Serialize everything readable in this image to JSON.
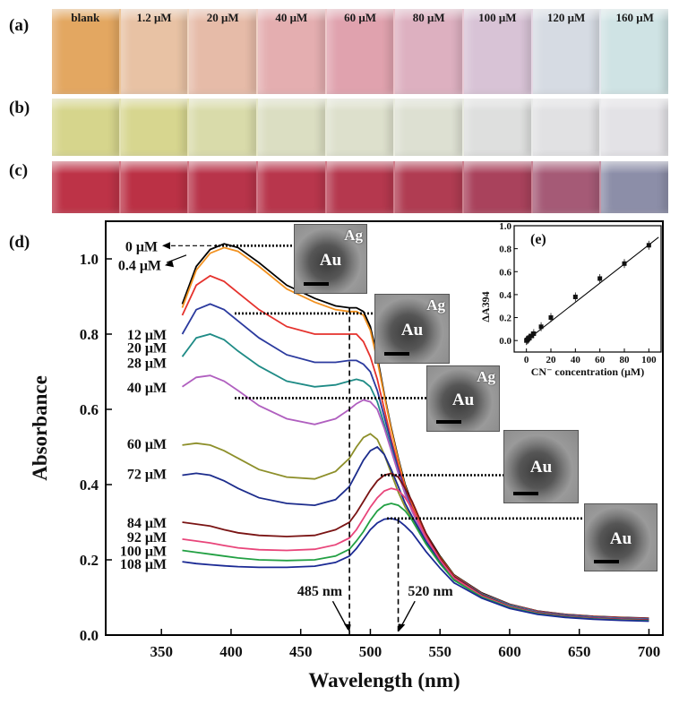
{
  "panels": {
    "a": "(a)",
    "b": "(b)",
    "c": "(c)",
    "d": "(d)",
    "e": "(e)"
  },
  "vials": {
    "labels": [
      "blank",
      "1.2 μM",
      "20 μM",
      "40 μM",
      "60 μM",
      "80 μM",
      "100 μM",
      "120 μM",
      "160 μM"
    ],
    "row_a": [
      "#e3a761",
      "#e8c2a4",
      "#e6bba8",
      "#e4aeb0",
      "#e0a2ae",
      "#ddb0c0",
      "#d8c3d6",
      "#d6dbe3",
      "#cfe3e4"
    ],
    "row_b": [
      "#d6d58c",
      "#d7d68f",
      "#d9dbaa",
      "#dbdec2",
      "#dde0cc",
      "#dde0d2",
      "#dedfde",
      "#e1e1e3",
      "#e3e2e6"
    ],
    "row_c": [
      "#bd3347",
      "#bb3145",
      "#b8344a",
      "#b8364c",
      "#b5384e",
      "#b03c52",
      "#a9425c",
      "#a55a76",
      "#8c8ea8"
    ]
  },
  "chart_data": [
    {
      "type": "line",
      "xlabel": "Wavelength (nm)",
      "ylabel": "Absorbance",
      "xlim": [
        310,
        710
      ],
      "ylim": [
        0.0,
        1.1
      ],
      "xticks": [
        350,
        400,
        450,
        500,
        550,
        600,
        650,
        700
      ],
      "yticks": [
        0.0,
        0.2,
        0.4,
        0.6,
        0.8,
        1.0
      ],
      "xtick_labels": [
        "350",
        "400",
        "450",
        "500",
        "550",
        "600",
        "650",
        "700"
      ],
      "ytick_labels": [
        "0.0",
        "0.2",
        "0.4",
        "0.6",
        "0.8",
        "1.0"
      ],
      "grid": false,
      "x": [
        365,
        375,
        385,
        395,
        405,
        420,
        440,
        460,
        475,
        485,
        490,
        495,
        500,
        505,
        510,
        515,
        520,
        525,
        530,
        540,
        550,
        560,
        580,
        600,
        620,
        640,
        660,
        680,
        700
      ],
      "series": [
        {
          "name": "0 μM",
          "color": "#000000",
          "values": [
            0.88,
            0.98,
            1.025,
            1.04,
            1.03,
            0.99,
            0.93,
            0.895,
            0.875,
            0.87,
            0.87,
            0.86,
            0.82,
            0.74,
            0.64,
            0.55,
            0.47,
            0.4,
            0.35,
            0.27,
            0.21,
            0.16,
            0.112,
            0.082,
            0.064,
            0.055,
            0.05,
            0.047,
            0.045
          ]
        },
        {
          "name": "0.4 μM",
          "color": "#f29221",
          "values": [
            0.87,
            0.97,
            1.015,
            1.03,
            1.02,
            0.98,
            0.92,
            0.885,
            0.865,
            0.86,
            0.86,
            0.85,
            0.81,
            0.73,
            0.635,
            0.545,
            0.465,
            0.395,
            0.345,
            0.265,
            0.207,
            0.158,
            0.11,
            0.081,
            0.063,
            0.054,
            0.049,
            0.046,
            0.044
          ]
        },
        {
          "name": "12 μM",
          "color": "#e5322d",
          "values": [
            0.85,
            0.93,
            0.955,
            0.94,
            0.91,
            0.865,
            0.82,
            0.8,
            0.8,
            0.8,
            0.8,
            0.78,
            0.74,
            0.68,
            0.6,
            0.52,
            0.45,
            0.39,
            0.34,
            0.26,
            0.205,
            0.157,
            0.11,
            0.081,
            0.063,
            0.054,
            0.049,
            0.046,
            0.044
          ]
        },
        {
          "name": "20 μM",
          "color": "#2b3a9e",
          "values": [
            0.8,
            0.865,
            0.88,
            0.865,
            0.835,
            0.79,
            0.745,
            0.725,
            0.725,
            0.73,
            0.73,
            0.72,
            0.7,
            0.65,
            0.58,
            0.51,
            0.44,
            0.38,
            0.335,
            0.258,
            0.203,
            0.156,
            0.109,
            0.08,
            0.062,
            0.053,
            0.048,
            0.045,
            0.043
          ]
        },
        {
          "name": "28 μM",
          "color": "#1f8b86",
          "values": [
            0.74,
            0.79,
            0.8,
            0.785,
            0.755,
            0.715,
            0.675,
            0.66,
            0.665,
            0.675,
            0.68,
            0.675,
            0.66,
            0.62,
            0.56,
            0.495,
            0.43,
            0.375,
            0.33,
            0.255,
            0.2,
            0.154,
            0.108,
            0.079,
            0.061,
            0.052,
            0.047,
            0.044,
            0.042
          ]
        },
        {
          "name": "40 μM",
          "color": "#b05fbf",
          "values": [
            0.66,
            0.685,
            0.69,
            0.675,
            0.65,
            0.61,
            0.575,
            0.56,
            0.575,
            0.6,
            0.615,
            0.625,
            0.62,
            0.6,
            0.55,
            0.49,
            0.43,
            0.375,
            0.328,
            0.252,
            0.198,
            0.152,
            0.106,
            0.077,
            0.06,
            0.051,
            0.046,
            0.043,
            0.041
          ]
        },
        {
          "name": "60 μM",
          "color": "#8d8f2a",
          "values": [
            0.505,
            0.51,
            0.505,
            0.49,
            0.47,
            0.44,
            0.42,
            0.415,
            0.435,
            0.47,
            0.5,
            0.525,
            0.535,
            0.52,
            0.48,
            0.43,
            0.38,
            0.34,
            0.31,
            0.245,
            0.195,
            0.15,
            0.105,
            0.076,
            0.059,
            0.05,
            0.045,
            0.042,
            0.04
          ]
        },
        {
          "name": "72 μM",
          "color": "#1c2c8c",
          "values": [
            0.425,
            0.43,
            0.425,
            0.41,
            0.39,
            0.365,
            0.35,
            0.345,
            0.36,
            0.395,
            0.43,
            0.465,
            0.49,
            0.5,
            0.48,
            0.44,
            0.395,
            0.35,
            0.315,
            0.248,
            0.196,
            0.151,
            0.105,
            0.076,
            0.059,
            0.05,
            0.045,
            0.042,
            0.04
          ]
        },
        {
          "name": "84 μM",
          "color": "#7a1414",
          "values": [
            0.3,
            0.295,
            0.29,
            0.28,
            0.272,
            0.265,
            0.262,
            0.265,
            0.28,
            0.3,
            0.325,
            0.355,
            0.385,
            0.41,
            0.425,
            0.43,
            0.42,
            0.39,
            0.355,
            0.27,
            0.205,
            0.155,
            0.106,
            0.076,
            0.059,
            0.05,
            0.045,
            0.042,
            0.04
          ]
        },
        {
          "name": "92 μM",
          "color": "#e8457a",
          "values": [
            0.255,
            0.25,
            0.245,
            0.238,
            0.232,
            0.227,
            0.225,
            0.228,
            0.24,
            0.258,
            0.28,
            0.31,
            0.34,
            0.365,
            0.383,
            0.39,
            0.385,
            0.365,
            0.335,
            0.26,
            0.2,
            0.152,
            0.104,
            0.075,
            0.058,
            0.049,
            0.044,
            0.041,
            0.039
          ]
        },
        {
          "name": "100 μM",
          "color": "#22a043",
          "values": [
            0.225,
            0.22,
            0.215,
            0.21,
            0.205,
            0.2,
            0.198,
            0.2,
            0.21,
            0.228,
            0.25,
            0.275,
            0.305,
            0.33,
            0.345,
            0.35,
            0.345,
            0.33,
            0.305,
            0.242,
            0.19,
            0.146,
            0.101,
            0.073,
            0.057,
            0.048,
            0.043,
            0.04,
            0.038
          ]
        },
        {
          "name": "108 μM",
          "color": "#1b2a94",
          "values": [
            0.195,
            0.19,
            0.187,
            0.184,
            0.182,
            0.18,
            0.18,
            0.183,
            0.193,
            0.21,
            0.23,
            0.255,
            0.28,
            0.298,
            0.308,
            0.31,
            0.305,
            0.29,
            0.272,
            0.222,
            0.178,
            0.139,
            0.098,
            0.071,
            0.055,
            0.047,
            0.042,
            0.039,
            0.037
          ]
        }
      ],
      "annotations": [
        "485 nm",
        "520 nm"
      ],
      "annotation_x": [
        485,
        520
      ]
    },
    {
      "type": "scatter",
      "xlabel": "CN⁻ concentration (μM)",
      "ylabel": "ΔA394",
      "xlim": [
        -10,
        110
      ],
      "ylim": [
        -0.1,
        1.0
      ],
      "xticks": [
        0,
        20,
        40,
        60,
        80,
        100
      ],
      "yticks": [
        0.0,
        0.2,
        0.4,
        0.6,
        0.8,
        1.0
      ],
      "xtick_labels": [
        "0",
        "20",
        "40",
        "60",
        "80",
        "100"
      ],
      "ytick_labels": [
        "0.0",
        "0.2",
        "0.4",
        "0.6",
        "0.8",
        "1.0"
      ],
      "x": [
        0,
        0.4,
        1.2,
        2,
        4,
        6,
        12,
        20,
        40,
        60,
        80,
        100
      ],
      "y": [
        0.0,
        0.005,
        0.01,
        0.02,
        0.04,
        0.06,
        0.12,
        0.2,
        0.38,
        0.54,
        0.67,
        0.83
      ],
      "fit": [
        [
          0,
          0.0
        ],
        [
          108,
          0.9
        ]
      ]
    }
  ],
  "insets": {
    "au_label": "Au",
    "ag_label": "Ag"
  }
}
